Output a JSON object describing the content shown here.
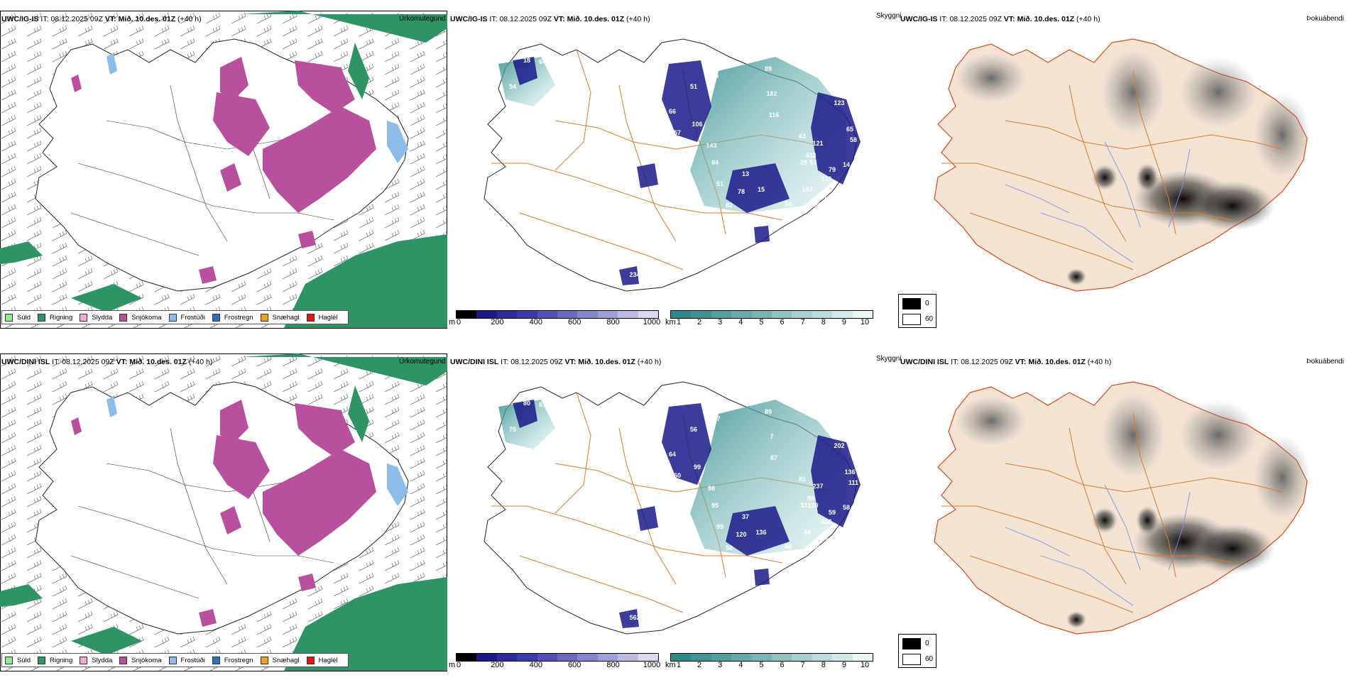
{
  "colors": {
    "rain": "#2e9466",
    "snow": "#b8509e",
    "sleet": "#f1a9d6",
    "drizzle": "#8cee8c",
    "frost_drizzle": "#8cbcea",
    "frost_rain": "#2f6fc0",
    "snow_grains": "#f0a020",
    "hail": "#e01818",
    "coast": "#1a1a1a",
    "road": "#e07a2a",
    "river": "#7e8fe8",
    "land_tan": "#f3e3d3",
    "ceiling_dark": "#1a1a8a",
    "vis_teal": "#2e8a8a"
  },
  "rows": [
    {
      "model": "UWC/IG-IS",
      "it_label": "IT:",
      "it_value": "08.12.2025 09Z",
      "vt_label": "VT:",
      "vt_value": "Mið. 10.des. 01Z",
      "lead": "(+40 h)",
      "precip_title": "Úrkomutegund",
      "visibility_title": "Skyggni",
      "fog_title": "Þokuábendi",
      "ceiling_labels": [
        "18",
        "64",
        "54",
        "7",
        "66",
        "51",
        "57",
        "106",
        "143",
        "84",
        "78",
        "89",
        "182",
        "116",
        "123",
        "69",
        "65",
        "58",
        "63",
        "433",
        "121",
        "13",
        "107",
        "53",
        "116",
        "68",
        "17",
        "51",
        "78",
        "82",
        "53",
        "80",
        "111",
        "177",
        "234",
        "29",
        "79",
        "41",
        "14",
        "15"
      ]
    },
    {
      "model": "UWC/DINI ISL",
      "it_label": "IT:",
      "it_value": "08.12.2025 09Z",
      "vt_label": "VT:",
      "vt_value": "Mið. 10.des. 01Z",
      "lead": "(+40 h)",
      "precip_title": "Úrkomutegund",
      "visibility_title": "Skyggni",
      "fog_title": "Þokuábendi",
      "ceiling_labels": [
        "80",
        "61",
        "75",
        "43",
        "64",
        "56",
        "60",
        "99",
        "98",
        "95",
        "107",
        "89",
        "7",
        "87",
        "202",
        "75",
        "136",
        "111",
        "81",
        "88",
        "237",
        "37",
        "44",
        "129",
        "406",
        "77",
        "108",
        "99",
        "120",
        "50",
        "88",
        "88",
        "31",
        "442",
        "562",
        "33",
        "59",
        "14",
        "58",
        "136"
      ]
    }
  ],
  "precip_legend": [
    "Súld",
    "Rigning",
    "Slydda",
    "Snjókoma",
    "Frostúði",
    "Frostregn",
    "Snæhagl",
    "Haglél"
  ],
  "ceiling_scale": {
    "unit": "m",
    "ticks": [
      "0",
      "200",
      "400",
      "600",
      "800",
      "1000"
    ]
  },
  "visibility_scale": {
    "unit": "km",
    "ticks": [
      "1",
      "2",
      "3",
      "4",
      "5",
      "6",
      "7",
      "8",
      "9",
      "10"
    ]
  },
  "fog_scale": {
    "ticks": [
      "0",
      "60"
    ]
  }
}
